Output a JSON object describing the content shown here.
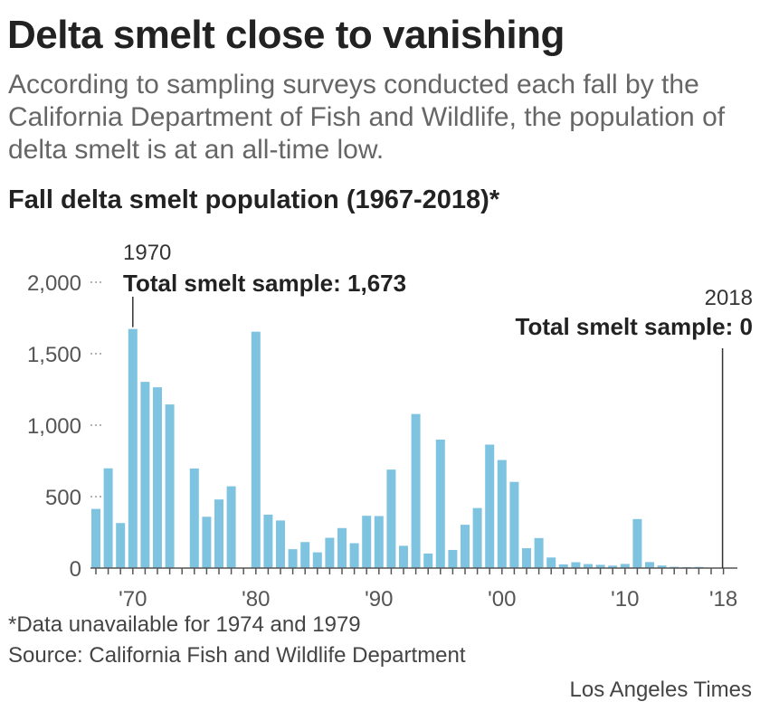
{
  "header": {
    "title": "Delta smelt close to vanishing",
    "subtitle": "According to sampling surveys conducted each fall by the California Department of Fish and Wildlife, the population of delta smelt is at an all-time low."
  },
  "chart_data": {
    "type": "bar",
    "title": "Fall delta smelt population (1967-2018)*",
    "xlabel": "",
    "ylabel": "",
    "ylim": [
      0,
      2000
    ],
    "yticks": [
      0,
      500,
      1000,
      1500,
      2000
    ],
    "ytick_labels": [
      "0",
      "500",
      "1,000",
      "1,500",
      "2,000"
    ],
    "xtick_labels": [
      {
        "year": 1970,
        "label": "'70"
      },
      {
        "year": 1980,
        "label": "'80"
      },
      {
        "year": 1990,
        "label": "'90"
      },
      {
        "year": 2000,
        "label": "'00"
      },
      {
        "year": 2010,
        "label": "'10"
      },
      {
        "year": 2018,
        "label": "'18"
      }
    ],
    "bar_color": "#7ec4e0",
    "x": [
      1967,
      1968,
      1969,
      1970,
      1971,
      1972,
      1973,
      1974,
      1975,
      1976,
      1977,
      1978,
      1979,
      1980,
      1981,
      1982,
      1983,
      1984,
      1985,
      1986,
      1987,
      1988,
      1989,
      1990,
      1991,
      1992,
      1993,
      1994,
      1995,
      1996,
      1997,
      1998,
      1999,
      2000,
      2001,
      2002,
      2003,
      2004,
      2005,
      2006,
      2007,
      2008,
      2009,
      2010,
      2011,
      2012,
      2013,
      2014,
      2015,
      2016,
      2017,
      2018
    ],
    "values": [
      414,
      698,
      315,
      1673,
      1303,
      1265,
      1145,
      null,
      697,
      359,
      480,
      572,
      null,
      1654,
      374,
      333,
      132,
      182,
      110,
      212,
      280,
      174,
      366,
      364,
      689,
      156,
      1078,
      102,
      899,
      127,
      303,
      420,
      864,
      756,
      603,
      139,
      210,
      74,
      26,
      41,
      28,
      23,
      17,
      29,
      343,
      42,
      18,
      9,
      7,
      8,
      2,
      0
    ],
    "annotations": [
      {
        "year": 1970,
        "label_year": "1970",
        "text": "Total smelt sample: 1,673"
      },
      {
        "year": 2018,
        "label_year": "2018",
        "text": "Total smelt sample: 0"
      }
    ]
  },
  "footnotes": {
    "data_note": "*Data unavailable for 1974 and 1979",
    "source": "Source: California Fish and Wildlife Department",
    "credit": "Los Angeles Times"
  }
}
